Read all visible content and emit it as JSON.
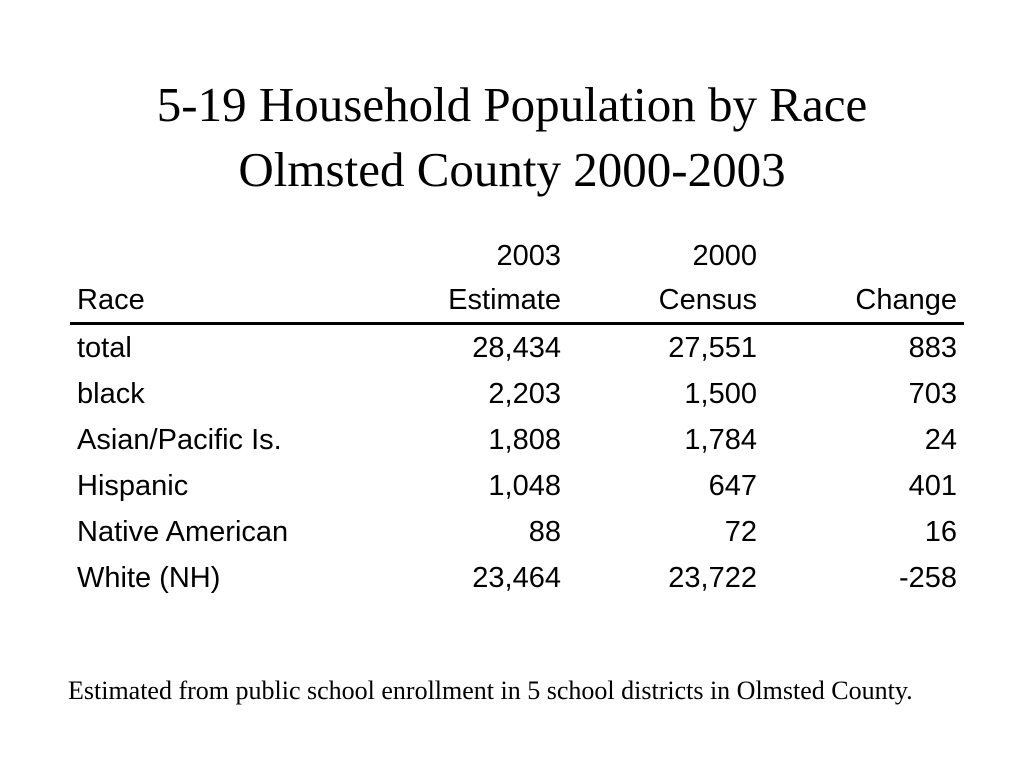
{
  "title": {
    "line1": "5-19 Household Population by Race",
    "line2": "Olmsted County 2000-2003"
  },
  "table": {
    "header_top": [
      "",
      "2003",
      "2000",
      ""
    ],
    "header_bottom": [
      "Race",
      "Estimate",
      "Census",
      "Change"
    ],
    "rows": [
      [
        "total",
        "28,434",
        "27,551",
        "883"
      ],
      [
        "black",
        "2,203",
        "1,500",
        "703"
      ],
      [
        "Asian/Pacific Is.",
        "1,808",
        "1,784",
        "24"
      ],
      [
        "Hispanic",
        "1,048",
        "647",
        "401"
      ],
      [
        "Native American",
        "88",
        "72",
        "16"
      ],
      [
        "White (NH)",
        "23,464",
        "23,722",
        "-258"
      ]
    ]
  },
  "note": "Estimated from public school enrollment in 5 school districts in Olmsted County."
}
